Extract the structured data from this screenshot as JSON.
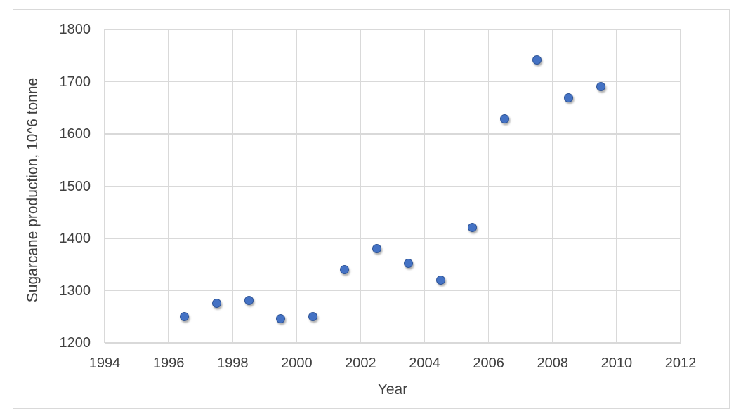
{
  "chart_data": {
    "type": "scatter",
    "title": "",
    "xlabel": "Year",
    "ylabel": "Sugarcane production, 10^6 tonne",
    "xlim": [
      1994,
      2012
    ],
    "ylim": [
      1200,
      1800
    ],
    "x_ticks": [
      1994,
      1996,
      1998,
      2000,
      2002,
      2004,
      2006,
      2008,
      2010,
      2012
    ],
    "y_ticks": [
      1200,
      1300,
      1400,
      1500,
      1600,
      1700,
      1800
    ],
    "grid": true,
    "legend": false,
    "series": [
      {
        "name": "Sugarcane production",
        "marker": "circle",
        "points": [
          {
            "x": 1996.5,
            "y": 1250
          },
          {
            "x": 1997.5,
            "y": 1276
          },
          {
            "x": 1998.5,
            "y": 1281
          },
          {
            "x": 1999.5,
            "y": 1246
          },
          {
            "x": 2000.5,
            "y": 1251
          },
          {
            "x": 2001.5,
            "y": 1340
          },
          {
            "x": 2002.5,
            "y": 1380
          },
          {
            "x": 2003.5,
            "y": 1352
          },
          {
            "x": 2004.5,
            "y": 1320
          },
          {
            "x": 2005.5,
            "y": 1421
          },
          {
            "x": 2006.5,
            "y": 1629
          },
          {
            "x": 2007.5,
            "y": 1741
          },
          {
            "x": 2008.5,
            "y": 1669
          },
          {
            "x": 2009.5,
            "y": 1690
          }
        ]
      }
    ]
  },
  "colors": {
    "marker_fill": "#4472C4",
    "marker_border": "#2F5597",
    "gridline": "#D9D9D9",
    "chart_border": "#D9D9D9",
    "tick_label": "#404040",
    "axis_title": "#404040",
    "background": "#FFFFFF"
  }
}
